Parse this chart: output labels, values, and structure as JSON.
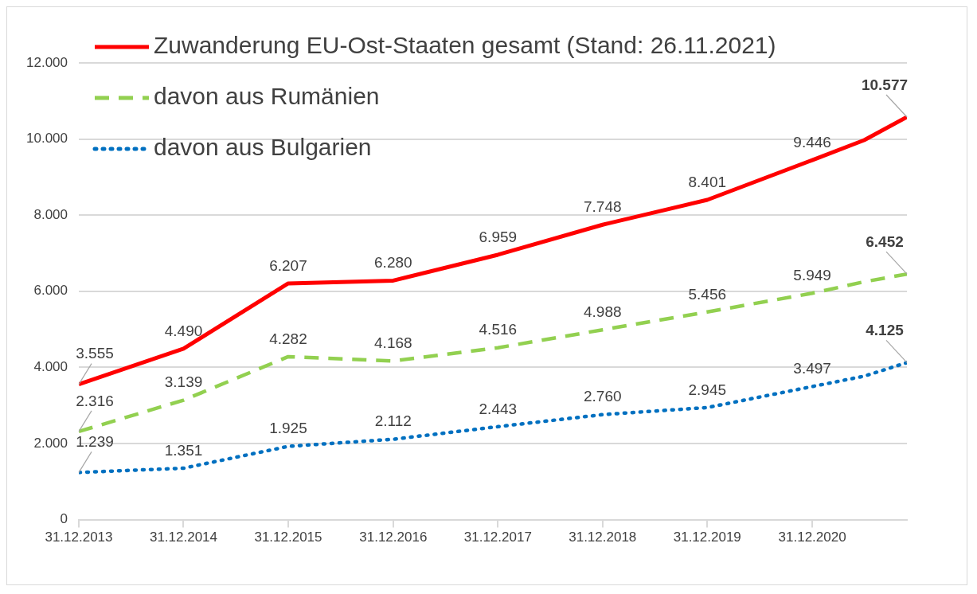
{
  "chart_data": {
    "type": "line",
    "x": [
      "2013-12-31",
      "2014-12-31",
      "2015-12-31",
      "2016-12-31",
      "2017-12-31",
      "2018-12-31",
      "2019-12-31",
      "2020-12-31",
      "2021-06-30",
      "2021-11-26"
    ],
    "series": [
      {
        "name": "Zuwanderung EU-Ost-Staaten gesamt (Stand: 26.11.2021)",
        "color": "#ff0000",
        "line_style": "solid",
        "values": [
          3555,
          4490,
          6207,
          6280,
          6959,
          7748,
          8401,
          9446,
          9970,
          10577
        ],
        "value_labels": [
          "3.555",
          "4.490",
          "6.207",
          "6.280",
          "6.959",
          "7.748",
          "8.401",
          "9.446",
          null,
          "10.577"
        ]
      },
      {
        "name": "davon aus Rumänien",
        "color": "#92d050",
        "line_style": "dashed",
        "values": [
          2316,
          3139,
          4282,
          4168,
          4516,
          4988,
          5456,
          5949,
          6250,
          6452
        ],
        "value_labels": [
          "2.316",
          "3.139",
          "4.282",
          "4.168",
          "4.516",
          "4.988",
          "5.456",
          "5.949",
          null,
          "6.452"
        ]
      },
      {
        "name": "davon aus Bulgarien",
        "color": "#0070c0",
        "line_style": "dotted",
        "values": [
          1239,
          1351,
          1925,
          2112,
          2443,
          2760,
          2945,
          3497,
          3770,
          4125
        ],
        "value_labels": [
          "1.239",
          "1.351",
          "1.925",
          "2.112",
          "2.443",
          "2.760",
          "2.945",
          "3.497",
          null,
          "4.125"
        ]
      }
    ],
    "xlim": [
      "2013-12-31",
      "2021-11-26"
    ],
    "xticks": [
      {
        "value": "2013-12-31",
        "label": "31.12.2013"
      },
      {
        "value": "2014-12-31",
        "label": "31.12.2014"
      },
      {
        "value": "2015-12-31",
        "label": "31.12.2015"
      },
      {
        "value": "2016-12-31",
        "label": "31.12.2016"
      },
      {
        "value": "2017-12-31",
        "label": "31.12.2017"
      },
      {
        "value": "2018-12-31",
        "label": "31.12.2018"
      },
      {
        "value": "2019-12-31",
        "label": "31.12.2019"
      },
      {
        "value": "2020-12-31",
        "label": "31.12.2020"
      }
    ],
    "ylim": [
      0,
      12000
    ],
    "yticks": [
      {
        "value": 0,
        "label": "0"
      },
      {
        "value": 2000,
        "label": "2.000"
      },
      {
        "value": 4000,
        "label": "4.000"
      },
      {
        "value": 6000,
        "label": "6.000"
      },
      {
        "value": 8000,
        "label": "8.000"
      },
      {
        "value": 10000,
        "label": "10.000"
      },
      {
        "value": 12000,
        "label": "12.000"
      }
    ],
    "grid": "y",
    "legend": "top left",
    "marker": "none"
  }
}
